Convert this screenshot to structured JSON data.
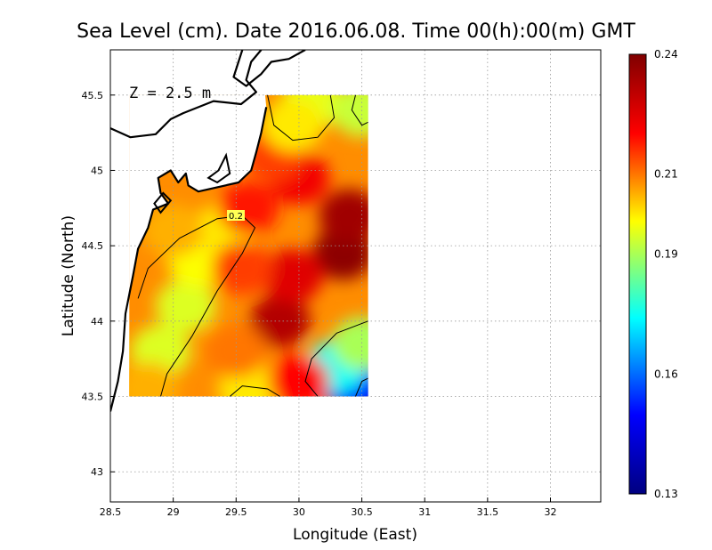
{
  "chart_data": {
    "type": "heatmap",
    "title": "Sea Level (cm). Date 2016.06.08. Time 00(h):00(m) GMT",
    "xlabel": "Longitude (East)",
    "ylabel": "Latitude (North)",
    "xlim": [
      28.5,
      32.4
    ],
    "ylim": [
      42.8,
      45.8
    ],
    "x_ticks": [
      28.5,
      29,
      29.5,
      30,
      30.5,
      31,
      31.5,
      32
    ],
    "x_tick_labels": [
      "28.5",
      "29",
      "29.5",
      "30",
      "30.5",
      "31",
      "31.5",
      "32"
    ],
    "y_ticks": [
      43,
      43.5,
      44,
      44.5,
      45,
      45.5
    ],
    "y_tick_labels": [
      "43",
      "43.5",
      "44",
      "44.5",
      "45",
      "45.5"
    ],
    "grid": true,
    "annotation": "Z = 2.5 m",
    "contour_level_label": "0.2",
    "colorbar": {
      "min": 0.13,
      "max": 0.24,
      "ticks": [
        0.13,
        0.16,
        0.19,
        0.21,
        0.24
      ],
      "tick_labels": [
        "0.13",
        "0.16",
        "0.19",
        "0.21",
        "0.24"
      ],
      "colors": [
        "#000080",
        "#0000ff",
        "#00ffff",
        "#ffff00",
        "#ff0000",
        "#800000"
      ]
    },
    "data_extent": {
      "lon": [
        28.65,
        30.55
      ],
      "lat": [
        43.5,
        45.5
      ]
    },
    "field_samples": [
      {
        "lon": 29.1,
        "lat": 44.1,
        "value": 0.195
      },
      {
        "lon": 28.9,
        "lat": 43.8,
        "value": 0.195
      },
      {
        "lon": 29.2,
        "lat": 44.4,
        "value": 0.198
      },
      {
        "lon": 29.4,
        "lat": 44.6,
        "value": 0.2
      },
      {
        "lon": 29.0,
        "lat": 44.6,
        "value": 0.205
      },
      {
        "lon": 30.35,
        "lat": 44.45,
        "value": 0.238
      },
      {
        "lon": 30.4,
        "lat": 44.7,
        "value": 0.235
      },
      {
        "lon": 29.85,
        "lat": 44.0,
        "value": 0.232
      },
      {
        "lon": 29.95,
        "lat": 44.3,
        "value": 0.225
      },
      {
        "lon": 30.0,
        "lat": 44.95,
        "value": 0.222
      },
      {
        "lon": 29.8,
        "lat": 45.1,
        "value": 0.215
      },
      {
        "lon": 30.1,
        "lat": 45.45,
        "value": 0.196
      },
      {
        "lon": 29.95,
        "lat": 45.3,
        "value": 0.2
      },
      {
        "lon": 30.5,
        "lat": 45.4,
        "value": 0.193
      },
      {
        "lon": 30.45,
        "lat": 43.55,
        "value": 0.15
      },
      {
        "lon": 30.3,
        "lat": 43.7,
        "value": 0.175
      },
      {
        "lon": 30.5,
        "lat": 43.85,
        "value": 0.19
      },
      {
        "lon": 29.6,
        "lat": 43.55,
        "value": 0.2
      },
      {
        "lon": 29.5,
        "lat": 43.8,
        "value": 0.21
      },
      {
        "lon": 28.8,
        "lat": 43.55,
        "value": 0.205
      },
      {
        "lon": 30.0,
        "lat": 43.6,
        "value": 0.22
      },
      {
        "lon": 29.55,
        "lat": 44.35,
        "value": 0.215
      },
      {
        "lon": 29.6,
        "lat": 44.75,
        "value": 0.218
      }
    ],
    "land_mask_cells": [
      {
        "lon": 29.8,
        "lat": 45.4
      },
      {
        "lon": 29.8,
        "lat": 45.2
      },
      {
        "lon": 29.7,
        "lat": 45.05
      },
      {
        "lon": 29.7,
        "lat": 44.9
      },
      {
        "lon": 29.65,
        "lat": 44.8
      },
      {
        "lon": 29.5,
        "lat": 44.8
      },
      {
        "lon": 29.3,
        "lat": 44.8
      },
      {
        "lon": 29.1,
        "lat": 44.75
      },
      {
        "lon": 29.0,
        "lat": 44.7
      },
      {
        "lon": 28.9,
        "lat": 44.6
      },
      {
        "lon": 28.8,
        "lat": 44.5
      },
      {
        "lon": 28.75,
        "lat": 44.3
      },
      {
        "lon": 28.7,
        "lat": 44.1
      },
      {
        "lon": 28.65,
        "lat": 43.9
      }
    ],
    "coastline": [
      [
        29.7,
        45.8
      ],
      [
        29.62,
        45.72
      ],
      [
        29.58,
        45.6
      ],
      [
        29.66,
        45.52
      ],
      [
        29.54,
        45.44
      ],
      [
        29.32,
        45.46
      ],
      [
        29.08,
        45.38
      ],
      [
        28.98,
        45.34
      ],
      [
        28.86,
        45.24
      ],
      [
        28.66,
        45.22
      ],
      [
        28.5,
        45.28
      ]
    ],
    "coastline2": [
      [
        29.74,
        45.42
      ],
      [
        29.7,
        45.25
      ],
      [
        29.66,
        45.12
      ],
      [
        29.62,
        45.0
      ],
      [
        29.52,
        44.92
      ],
      [
        29.2,
        44.86
      ],
      [
        29.12,
        44.9
      ],
      [
        29.1,
        44.98
      ],
      [
        29.04,
        44.92
      ],
      [
        28.98,
        45.0
      ],
      [
        28.88,
        44.95
      ],
      [
        28.9,
        44.85
      ],
      [
        28.96,
        44.78
      ],
      [
        28.84,
        44.74
      ],
      [
        28.8,
        44.62
      ],
      [
        28.72,
        44.48
      ],
      [
        28.68,
        44.3
      ],
      [
        28.62,
        44.05
      ],
      [
        28.6,
        43.8
      ],
      [
        28.56,
        43.6
      ],
      [
        28.5,
        43.4
      ]
    ],
    "lagoons": [
      [
        [
          29.42,
          45.1
        ],
        [
          29.36,
          45.0
        ],
        [
          29.28,
          44.95
        ],
        [
          29.35,
          44.92
        ],
        [
          29.45,
          44.98
        ],
        [
          29.42,
          45.1
        ]
      ],
      [
        [
          28.92,
          44.85
        ],
        [
          28.85,
          44.78
        ],
        [
          28.9,
          44.72
        ],
        [
          28.98,
          44.8
        ],
        [
          28.92,
          44.85
        ]
      ]
    ],
    "coast_north": [
      [
        29.55,
        45.8
      ],
      [
        29.48,
        45.62
      ],
      [
        29.58,
        45.56
      ],
      [
        29.7,
        45.64
      ],
      [
        29.78,
        45.72
      ],
      [
        29.92,
        45.74
      ],
      [
        30.05,
        45.8
      ]
    ]
  }
}
